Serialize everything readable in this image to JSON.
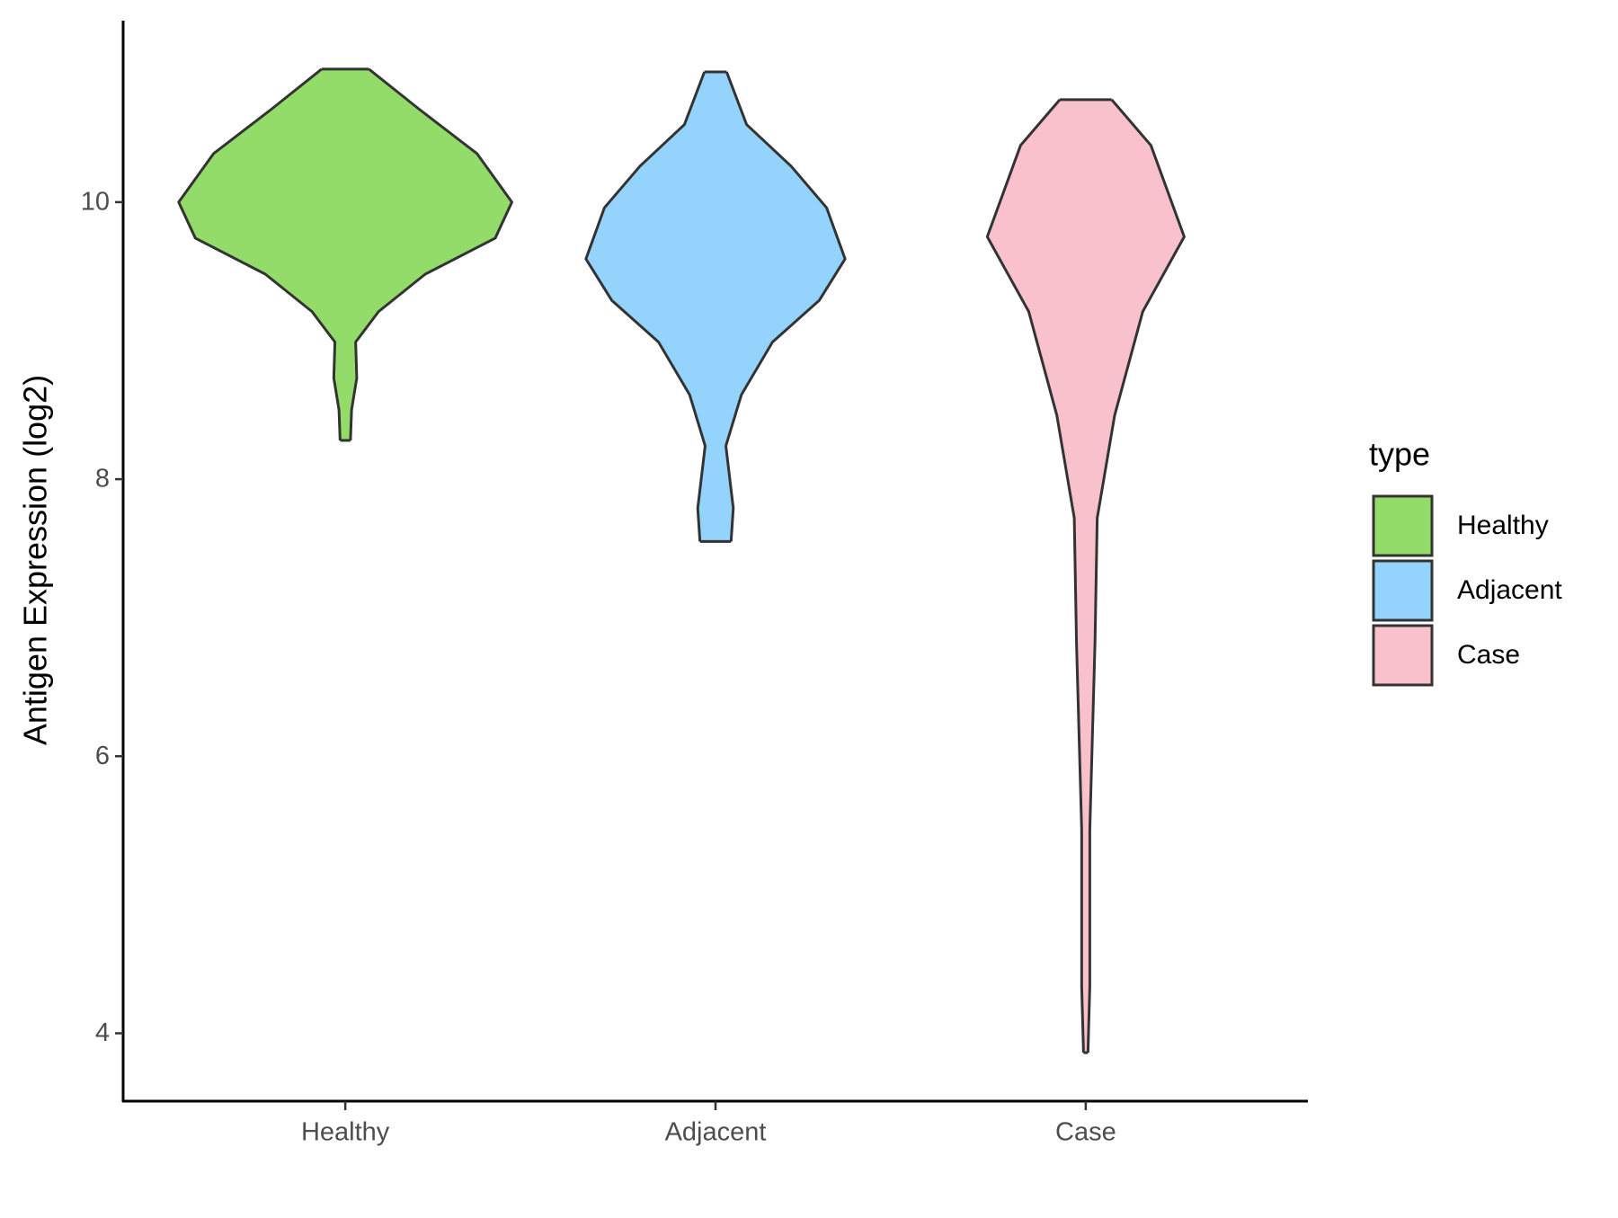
{
  "chart_data": {
    "type": "violin",
    "y_label": "Antigen Expression (log2)",
    "legend_title": "type",
    "categories": [
      "Healthy",
      "Adjacent",
      "Case"
    ],
    "ylim": [
      3.51,
      11.31
    ],
    "yticks": [
      4,
      6,
      8,
      10
    ],
    "series": [
      {
        "name": "Healthy",
        "color": "#93dc6a",
        "y": [
          10.96,
          10.67,
          10.35,
          10.0,
          9.74,
          9.48,
          9.21,
          8.99,
          8.73,
          8.5,
          8.28
        ],
        "width": [
          0.064,
          0.2,
          0.356,
          0.45,
          0.405,
          0.216,
          0.09,
          0.028,
          0.031,
          0.017,
          0.014
        ]
      },
      {
        "name": "Adjacent",
        "color": "#93d3fc",
        "y": [
          10.94,
          10.56,
          10.26,
          9.96,
          9.59,
          9.29,
          8.99,
          8.61,
          8.24,
          7.79,
          7.55
        ],
        "width": [
          0.03,
          0.084,
          0.204,
          0.3,
          0.35,
          0.28,
          0.154,
          0.07,
          0.028,
          0.048,
          0.042
        ]
      },
      {
        "name": "Case",
        "color": "#f8c1cc",
        "y": [
          10.74,
          10.41,
          9.75,
          9.21,
          8.46,
          7.72,
          6.82,
          5.47,
          4.34,
          3.86
        ],
        "width": [
          0.07,
          0.176,
          0.266,
          0.154,
          0.078,
          0.031,
          0.025,
          0.011,
          0.011,
          0.006
        ]
      }
    ]
  }
}
